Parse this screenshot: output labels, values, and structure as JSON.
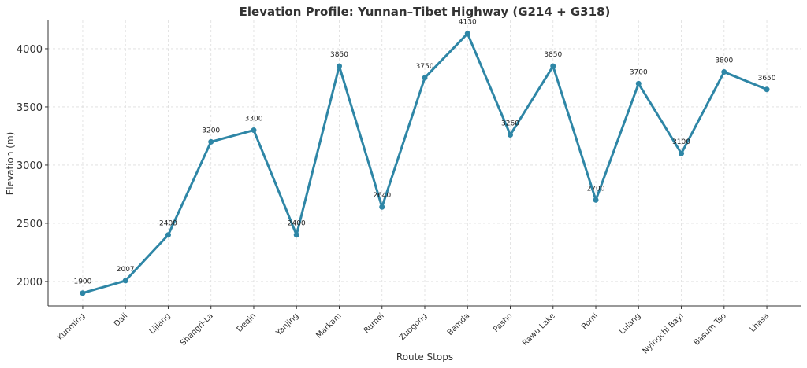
{
  "chart_data": {
    "type": "line",
    "title": "Elevation Profile: Yunnan–Tibet Highway (G214 + G318)",
    "xlabel": "Route Stops",
    "ylabel": "Elevation (m)",
    "categories": [
      "Kunming",
      "Dali",
      "Lijiang",
      "Shangri-La",
      "Deqin",
      "Yanjing",
      "Markam",
      "Rumei",
      "Zuogong",
      "Bamda",
      "Pasho",
      "Rawu Lake",
      "Pomi",
      "Lulang",
      "Nyingchi Bayi",
      "Basum Tso",
      "Lhasa"
    ],
    "values": [
      1900,
      2007,
      2400,
      3200,
      3300,
      2400,
      3850,
      2640,
      3750,
      4130,
      3260,
      3850,
      2700,
      3700,
      3100,
      3800,
      3650
    ],
    "data_labels": [
      "1900",
      "2007",
      "2400",
      "3200",
      "3300",
      "2400",
      "3850",
      "2640",
      "3750",
      "4130",
      "3260",
      "3850",
      "2700",
      "3700",
      "3100",
      "3800",
      "3650"
    ],
    "yticks": [
      2000,
      2500,
      3000,
      3500,
      4000
    ],
    "ytick_labels": [
      "2000",
      "2500",
      "3000",
      "3500",
      "4000"
    ],
    "ylim": [
      1790,
      4243
    ],
    "grid": true,
    "line_color": "#2e86a6",
    "markers": true
  }
}
